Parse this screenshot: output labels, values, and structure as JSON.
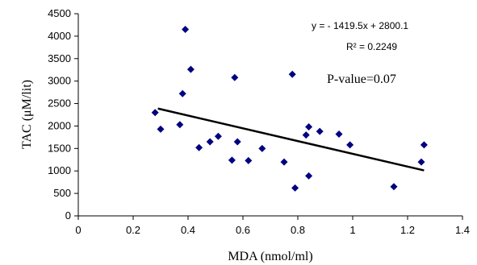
{
  "chart_data": {
    "type": "scatter",
    "xlabel": "MDA (nmol/ml)",
    "ylabel": "TAC (μM/lit)",
    "xlim": [
      0,
      1.4
    ],
    "ylim": [
      0,
      4500
    ],
    "x_ticks": [
      "0",
      "0.2",
      "0.4",
      "0.6",
      "0.8",
      "1",
      "1.2",
      "1.4"
    ],
    "y_ticks": [
      "0",
      "500",
      "1000",
      "1500",
      "2000",
      "2500",
      "3000",
      "3500",
      "4000",
      "4500"
    ],
    "grid": false,
    "legend": "none",
    "marker_color": "#000080",
    "marker_shape": "diamond",
    "points": [
      {
        "x": 0.28,
        "y": 2300
      },
      {
        "x": 0.3,
        "y": 1930
      },
      {
        "x": 0.37,
        "y": 2030
      },
      {
        "x": 0.38,
        "y": 2720
      },
      {
        "x": 0.39,
        "y": 4150
      },
      {
        "x": 0.41,
        "y": 3260
      },
      {
        "x": 0.44,
        "y": 1520
      },
      {
        "x": 0.48,
        "y": 1650
      },
      {
        "x": 0.51,
        "y": 1770
      },
      {
        "x": 0.56,
        "y": 1240
      },
      {
        "x": 0.57,
        "y": 3080
      },
      {
        "x": 0.58,
        "y": 1650
      },
      {
        "x": 0.62,
        "y": 1230
      },
      {
        "x": 0.67,
        "y": 1500
      },
      {
        "x": 0.75,
        "y": 1200
      },
      {
        "x": 0.78,
        "y": 3150
      },
      {
        "x": 0.79,
        "y": 620
      },
      {
        "x": 0.83,
        "y": 1800
      },
      {
        "x": 0.84,
        "y": 1980
      },
      {
        "x": 0.84,
        "y": 890
      },
      {
        "x": 0.88,
        "y": 1880
      },
      {
        "x": 0.95,
        "y": 1820
      },
      {
        "x": 0.99,
        "y": 1580
      },
      {
        "x": 1.15,
        "y": 650
      },
      {
        "x": 1.25,
        "y": 1200
      },
      {
        "x": 1.26,
        "y": 1580
      }
    ],
    "trendline": {
      "slope": -1419.5,
      "intercept": 2800.1,
      "x_range": [
        0.29,
        1.26
      ]
    },
    "annotations": {
      "equation": "y = - 1419.5x + 2800.1",
      "r_squared": "R² = 0.2249",
      "p_value": "P-value=0.07"
    }
  }
}
